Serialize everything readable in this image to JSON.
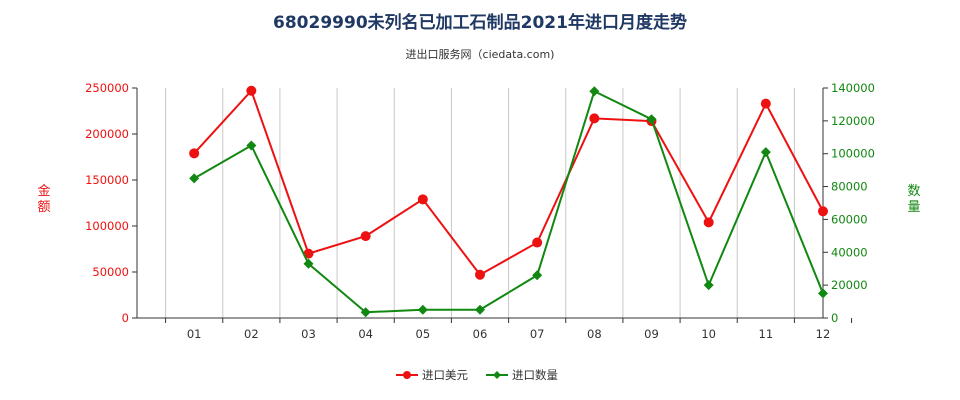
{
  "title": "68029990未列名已加工石制品2021年进口月度走势",
  "subtitle": "进出口服务网（ciedata.com)",
  "colors": {
    "amount": "#ee1111",
    "quantity": "#118811",
    "grid": "#c8c8c8",
    "axis": "#333333"
  },
  "chart_data": {
    "type": "line",
    "categories": [
      "01",
      "02",
      "03",
      "04",
      "05",
      "06",
      "07",
      "08",
      "09",
      "10",
      "11",
      "12"
    ],
    "y_left": {
      "label": "金额",
      "ylim": [
        0,
        250000
      ],
      "ticks": [
        0,
        50000,
        100000,
        150000,
        200000,
        250000
      ]
    },
    "y_right": {
      "label": "数量",
      "ylim": [
        0,
        140000
      ],
      "ticks": [
        0,
        20000,
        40000,
        60000,
        80000,
        100000,
        120000,
        140000
      ]
    },
    "series": [
      {
        "name": "进口美元",
        "axis": "left",
        "marker": "circle",
        "values": [
          179000,
          247000,
          70000,
          89000,
          129000,
          47000,
          82000,
          217000,
          214000,
          104000,
          233000,
          116000
        ]
      },
      {
        "name": "进口数量",
        "axis": "right",
        "marker": "diamond",
        "values": [
          85000,
          105000,
          33000,
          3500,
          5000,
          5000,
          26000,
          138000,
          121000,
          20000,
          101000,
          15000
        ]
      }
    ],
    "grid": "vertical",
    "legend": "bottom-center"
  }
}
